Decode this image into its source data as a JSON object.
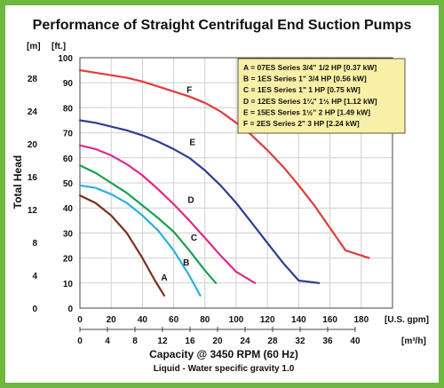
{
  "chart_data": {
    "type": "line",
    "title": "Performance of Straight Centrifugal End Suction Pumps",
    "left_axis_unit": "[m]",
    "right_axis_unit": "[ft.]",
    "ylabel": "Total Head",
    "gpm_unit": "[U.S. gpm]",
    "m3h_unit": "[m³/h]",
    "xlabel": "Capacity @ 3450 RPM (60 Hz)",
    "subtitle": "Liquid - Water specific gravity 1.0",
    "ylim_ft": [
      0,
      100
    ],
    "xlim_gpm": [
      0,
      200
    ],
    "m_ticks": [
      "0",
      "4",
      "8",
      "12",
      "16",
      "20",
      "24",
      "28"
    ],
    "ft_ticks": [
      "10",
      "20",
      "30",
      "40",
      "50",
      "60",
      "70",
      "80",
      "90",
      "100"
    ],
    "gpm_ticks": [
      "0",
      "20",
      "40",
      "60",
      "80",
      "100",
      "120",
      "140",
      "160",
      "180"
    ],
    "m3h_ticks": [
      "0",
      "4",
      "8",
      "12",
      "16",
      "20",
      "24",
      "28",
      "32",
      "36",
      "40"
    ],
    "grid": true,
    "legend_position": "top-right",
    "legend": [
      "A = 07ES Series 3/4\" 1/2 HP [0.37 kW]",
      "B = 1ES Series 1\" 3/4 HP [0.56 kW]",
      "C = 1ES Series 1\" 1 HP [0.75 kW]",
      "D = 12ES Series 1¼\" 1½ HP [1.12 kW]",
      "E = 15ES Series 1½\" 2 HP [1.49 kW]",
      "F = 2ES Series 2\" 3 HP [2.24 kW]"
    ],
    "series": [
      {
        "name": "A",
        "color": "#7a2f1e",
        "label_at": [
          54,
          11
        ],
        "points": [
          [
            0,
            45
          ],
          [
            10,
            42
          ],
          [
            20,
            37
          ],
          [
            30,
            30
          ],
          [
            40,
            20
          ],
          [
            48,
            11
          ],
          [
            54,
            5
          ]
        ]
      },
      {
        "name": "B",
        "color": "#2ab0e0",
        "label_at": [
          68,
          17
        ],
        "points": [
          [
            0,
            49
          ],
          [
            10,
            48
          ],
          [
            20,
            45.5
          ],
          [
            30,
            42
          ],
          [
            40,
            37
          ],
          [
            50,
            31
          ],
          [
            60,
            23
          ],
          [
            70,
            13
          ],
          [
            77,
            5
          ]
        ]
      },
      {
        "name": "C",
        "color": "#18a050",
        "label_at": [
          73,
          27
        ],
        "points": [
          [
            0,
            57
          ],
          [
            10,
            54
          ],
          [
            20,
            50
          ],
          [
            30,
            46
          ],
          [
            40,
            41
          ],
          [
            50,
            36
          ],
          [
            60,
            30.5
          ],
          [
            70,
            23
          ],
          [
            80,
            15
          ],
          [
            87,
            10
          ]
        ]
      },
      {
        "name": "D",
        "color": "#e0288c",
        "label_at": [
          71,
          42
        ],
        "points": [
          [
            0,
            65
          ],
          [
            10,
            63.5
          ],
          [
            20,
            61
          ],
          [
            30,
            57.5
          ],
          [
            40,
            53
          ],
          [
            50,
            47.5
          ],
          [
            60,
            41.5
          ],
          [
            70,
            35
          ],
          [
            80,
            28
          ],
          [
            90,
            21
          ],
          [
            100,
            14.5
          ],
          [
            112,
            10
          ]
        ]
      },
      {
        "name": "E",
        "color": "#2a3f92",
        "label_at": [
          72,
          65
        ],
        "points": [
          [
            0,
            75
          ],
          [
            10,
            74
          ],
          [
            20,
            72.5
          ],
          [
            30,
            71
          ],
          [
            40,
            69
          ],
          [
            50,
            66.5
          ],
          [
            60,
            63.5
          ],
          [
            70,
            60
          ],
          [
            80,
            55
          ],
          [
            90,
            49
          ],
          [
            100,
            42
          ],
          [
            110,
            34
          ],
          [
            120,
            26
          ],
          [
            130,
            18
          ],
          [
            140,
            11
          ],
          [
            153,
            10
          ]
        ]
      },
      {
        "name": "F",
        "color": "#e23b3b",
        "label_at": [
          70,
          86
        ],
        "points": [
          [
            0,
            95
          ],
          [
            10,
            94
          ],
          [
            20,
            93
          ],
          [
            30,
            92
          ],
          [
            40,
            90.5
          ],
          [
            50,
            88.5
          ],
          [
            60,
            86.5
          ],
          [
            70,
            84.5
          ],
          [
            80,
            82
          ],
          [
            90,
            78.5
          ],
          [
            100,
            74
          ],
          [
            110,
            69
          ],
          [
            120,
            63
          ],
          [
            130,
            56.5
          ],
          [
            140,
            49
          ],
          [
            150,
            41
          ],
          [
            160,
            32
          ],
          [
            170,
            23
          ],
          [
            185,
            20
          ]
        ]
      }
    ]
  }
}
